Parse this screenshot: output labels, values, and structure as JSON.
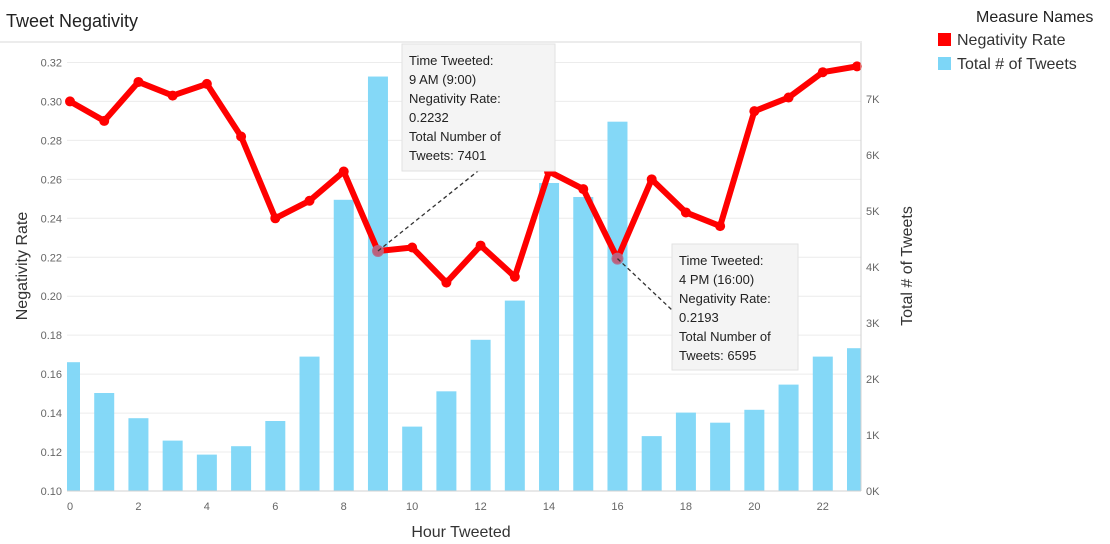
{
  "chart_data": {
    "type": "bar+line",
    "title": "Tweet Negativity",
    "xlabel": "Hour Tweeted",
    "ylabel_left": "Negativity Rate",
    "ylabel_right": "Total # of Tweets",
    "x": [
      0,
      1,
      2,
      3,
      4,
      5,
      6,
      7,
      8,
      9,
      10,
      11,
      12,
      13,
      14,
      15,
      16,
      17,
      18,
      19,
      20,
      21,
      22,
      23
    ],
    "x_ticks": [
      0,
      2,
      4,
      6,
      8,
      10,
      12,
      14,
      16,
      18,
      20,
      22
    ],
    "x_tick_labels": [
      "0",
      "2",
      "4",
      "6",
      "8",
      "10",
      "12",
      "14",
      "16",
      "18",
      "20",
      "22"
    ],
    "ylim_left": [
      0.1,
      0.33
    ],
    "ylim_right": [
      0,
      8000
    ],
    "left_ticks": [
      0.1,
      0.12,
      0.14,
      0.16,
      0.18,
      0.2,
      0.22,
      0.24,
      0.26,
      0.28,
      0.3,
      0.32
    ],
    "left_tick_labels": [
      "0.10",
      "0.12",
      "0.14",
      "0.16",
      "0.18",
      "0.20",
      "0.22",
      "0.24",
      "0.26",
      "0.28",
      "0.30",
      "0.32"
    ],
    "right_ticks": [
      0,
      1000,
      2000,
      3000,
      4000,
      5000,
      6000,
      7000
    ],
    "right_tick_labels": [
      "0K",
      "1K",
      "2K",
      "3K",
      "4K",
      "5K",
      "6K",
      "7K"
    ],
    "grid": true,
    "series": [
      {
        "name": "Negativity Rate",
        "kind": "line",
        "axis": "left",
        "color": "#ff0000",
        "values": [
          0.3,
          0.29,
          0.31,
          0.303,
          0.309,
          0.282,
          0.24,
          0.249,
          0.264,
          0.2232,
          0.225,
          0.207,
          0.226,
          0.21,
          0.264,
          0.255,
          0.2193,
          0.26,
          0.243,
          0.236,
          0.295,
          0.302,
          0.315,
          0.318
        ]
      },
      {
        "name": "Total # of Tweets",
        "kind": "bar",
        "axis": "right",
        "color": "#7dd6f7",
        "values": [
          2300,
          1750,
          1300,
          900,
          650,
          800,
          1250,
          2400,
          5200,
          7401,
          1150,
          1780,
          2700,
          3400,
          5500,
          5250,
          6595,
          980,
          1400,
          1220,
          1450,
          1900,
          2400,
          2550
        ]
      }
    ],
    "legend": {
      "title": "Measure Names",
      "position": "top-right",
      "items": [
        {
          "label": "Negativity Rate",
          "color": "#ff0000"
        },
        {
          "label": "Total # of Tweets",
          "color": "#7dd6f7"
        }
      ]
    },
    "tooltips": [
      {
        "hour": 9,
        "lines": [
          "Time Tweeted:",
          "9 AM (9:00)",
          "Negativity Rate:",
          "0.2232",
          "Total Number of",
          "Tweets: 7401"
        ]
      },
      {
        "hour": 16,
        "lines": [
          "Time Tweeted:",
          "4 PM (16:00)",
          "Negativity Rate:",
          "0.2193",
          "Total Number of",
          "Tweets: 6595"
        ]
      }
    ]
  }
}
